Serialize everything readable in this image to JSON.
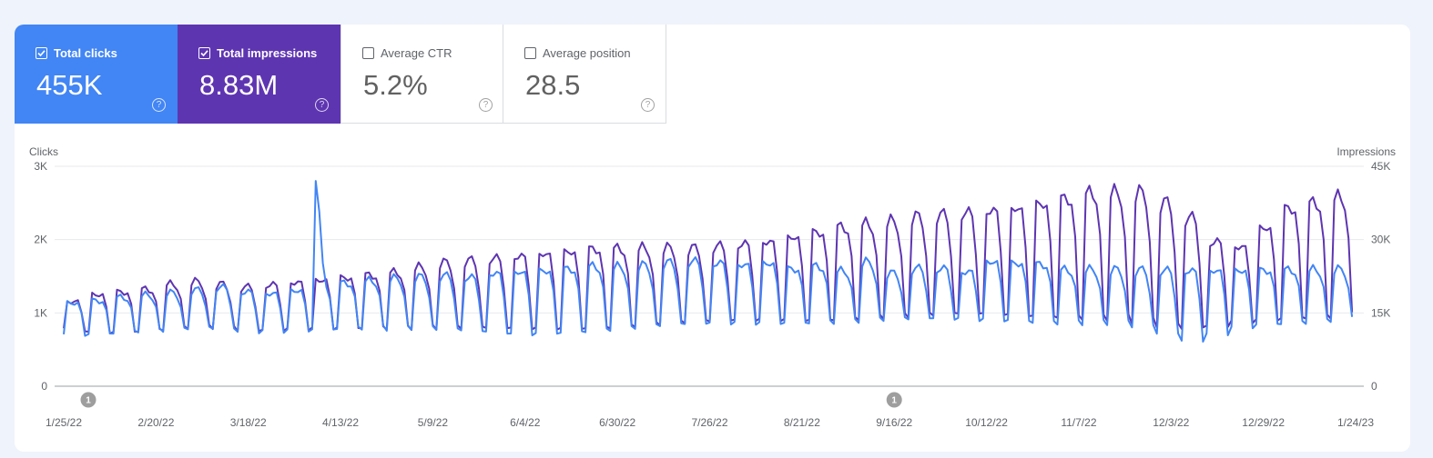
{
  "metrics": [
    {
      "label": "Total clicks",
      "value": "455K",
      "checked": true,
      "color": "#4285f4"
    },
    {
      "label": "Total impressions",
      "value": "8.83M",
      "checked": true,
      "color": "#5e35b1"
    },
    {
      "label": "Average CTR",
      "value": "5.2%",
      "checked": false,
      "color": "#ffffff"
    },
    {
      "label": "Average position",
      "value": "28.5",
      "checked": false,
      "color": "#ffffff"
    }
  ],
  "help_icon": "question-circle-icon",
  "chart_data": {
    "type": "line",
    "left_axis": {
      "title": "Clicks",
      "ticks": [
        "0",
        "1K",
        "2K",
        "3K"
      ],
      "range": [
        0,
        3000
      ]
    },
    "right_axis": {
      "title": "Impressions",
      "ticks": [
        "0",
        "15K",
        "30K",
        "45K"
      ],
      "range": [
        0,
        45000
      ]
    },
    "x_ticks": [
      "1/25/22",
      "2/20/22",
      "3/18/22",
      "4/13/22",
      "5/9/22",
      "6/4/22",
      "6/30/22",
      "7/26/22",
      "8/21/22",
      "9/16/22",
      "10/12/22",
      "11/7/22",
      "12/3/22",
      "12/29/22",
      "1/24/23"
    ],
    "annotations": [
      {
        "label": "1",
        "date": "1/25/22"
      },
      {
        "label": "1",
        "date": "9/16/22"
      }
    ],
    "grid": true,
    "series": [
      {
        "name": "Total clicks",
        "axis": "left",
        "color": "#4285f4",
        "weekday_level": [
          1150,
          1180,
          1220,
          1250,
          1280,
          1320,
          1360,
          1300,
          1280,
          1320,
          1380,
          1420,
          1450,
          1480,
          1500,
          1520,
          1500,
          1560,
          1580,
          1600,
          1620,
          1650,
          1640,
          1660,
          1700,
          1720,
          1700,
          1680,
          1700,
          1620,
          1650,
          1580,
          1700,
          1550,
          1620,
          1620,
          1580,
          1720,
          1700,
          1680,
          1600,
          1600,
          1600,
          1600,
          1600,
          1600,
          1600,
          1600,
          1600,
          1600,
          1600,
          1600,
          1600
        ],
        "weekend_level": [
          700,
          720,
          740,
          760,
          760,
          780,
          770,
          720,
          740,
          760,
          780,
          800,
          800,
          780,
          780,
          760,
          740,
          720,
          700,
          720,
          740,
          760,
          780,
          800,
          820,
          830,
          840,
          850,
          860,
          870,
          880,
          880,
          890,
          900,
          900,
          900,
          900,
          900,
          900,
          880,
          870,
          860,
          850,
          800,
          700,
          600,
          700,
          800,
          850,
          870,
          880,
          900,
          900
        ],
        "spike": {
          "date": "4/6/22",
          "value": 2800
        }
      },
      {
        "name": "Total impressions",
        "axis": "right",
        "color": "#5e35b1",
        "weekday_level": [
          17500,
          19000,
          19500,
          20000,
          21000,
          21500,
          21000,
          20500,
          21000,
          21500,
          22000,
          22500,
          23000,
          23500,
          24500,
          25500,
          26000,
          26500,
          27000,
          27500,
          28000,
          28500,
          28500,
          28500,
          28500,
          28500,
          29000,
          29500,
          30000,
          31000,
          32000,
          33000,
          33500,
          34000,
          35000,
          35500,
          36000,
          36500,
          37000,
          38000,
          39000,
          40000,
          40000,
          40000,
          38000,
          35000,
          30000,
          29000,
          33000,
          37000,
          38000,
          39000,
          40000
        ],
        "weekend_level": [
          11500,
          11000,
          11200,
          11500,
          11800,
          12000,
          11800,
          11000,
          11200,
          11500,
          11800,
          12000,
          12100,
          12000,
          11900,
          11800,
          11700,
          11600,
          11600,
          11700,
          11800,
          12000,
          12200,
          12500,
          12700,
          12900,
          13000,
          13200,
          13400,
          13500,
          13600,
          13800,
          14000,
          14100,
          14200,
          14300,
          14500,
          14500,
          14400,
          14300,
          14200,
          14000,
          13800,
          13000,
          12000,
          11500,
          12000,
          13000,
          13500,
          14000,
          14200,
          14300,
          14400
        ]
      }
    ]
  }
}
